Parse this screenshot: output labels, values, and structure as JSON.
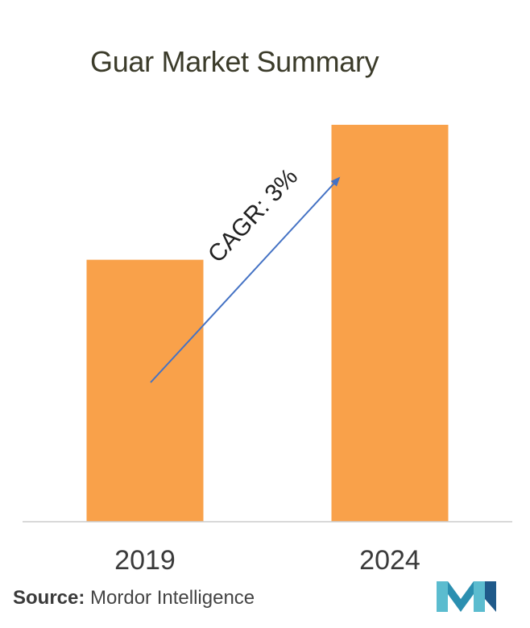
{
  "chart_data": {
    "type": "bar",
    "title": "Guar Market Summary",
    "categories": [
      "2019",
      "2024"
    ],
    "values": [
      66,
      100
    ],
    "ylim": [
      0,
      100
    ],
    "bar_color": "#f9a14a",
    "axis_color": "#cccccc",
    "annotation": {
      "text": "CAGR: 3%",
      "arrow_color": "#4472c4"
    }
  },
  "source": {
    "label": "Source:",
    "text": "Mordor Intelligence"
  },
  "logo": {
    "icon": "mordor-intelligence-logo",
    "colors": [
      "#5bbccf",
      "#1f5a8a"
    ]
  }
}
